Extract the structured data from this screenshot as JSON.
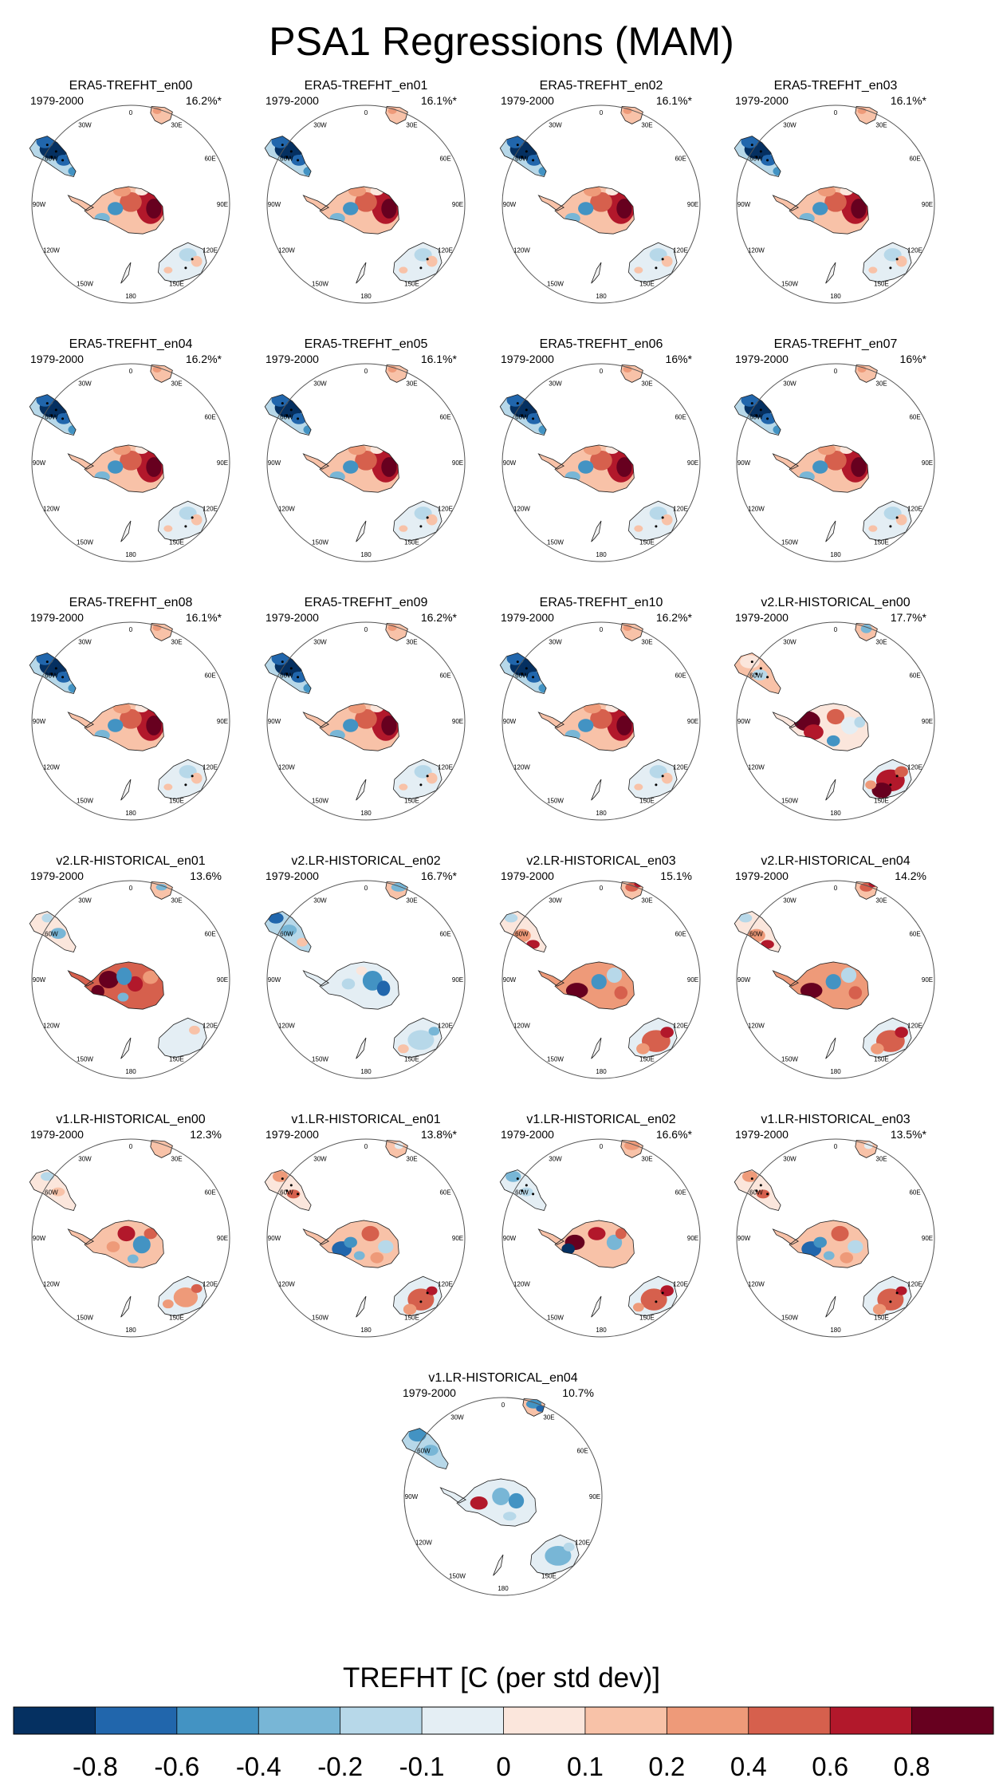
{
  "title": "PSA1 Regressions (MAM)",
  "colorbar": {
    "title": "TREFHT [C (per std dev)]",
    "colors": [
      "#053061",
      "#2166ac",
      "#4393c3",
      "#78b6d6",
      "#b7d8e9",
      "#e4eef4",
      "#fbe6dc",
      "#f8c2a8",
      "#ee9a79",
      "#d6604d",
      "#b2182b",
      "#67001f"
    ],
    "ticks": [
      "-0.8",
      "-0.6",
      "-0.4",
      "-0.2",
      "-0.1",
      "0",
      "0.1",
      "0.2",
      "0.4",
      "0.6",
      "0.8"
    ]
  },
  "lon_labels": [
    "0",
    "30E",
    "60E",
    "90E",
    "120E",
    "150E",
    "180",
    "150W",
    "120W",
    "90W",
    "60W",
    "30W"
  ],
  "chart_data": {
    "type": "heatmap",
    "variable": "TREFHT",
    "units": "C (per std dev)",
    "season": "MAM",
    "period": "1979-2000",
    "panels": [
      {
        "name": "ERA5-TREFHT_en00",
        "period": "1979-2000",
        "pct": "16.2%*",
        "pattern": "era5"
      },
      {
        "name": "ERA5-TREFHT_en01",
        "period": "1979-2000",
        "pct": "16.1%*",
        "pattern": "era5"
      },
      {
        "name": "ERA5-TREFHT_en02",
        "period": "1979-2000",
        "pct": "16.1%*",
        "pattern": "era5"
      },
      {
        "name": "ERA5-TREFHT_en03",
        "period": "1979-2000",
        "pct": "16.1%*",
        "pattern": "era5"
      },
      {
        "name": "ERA5-TREFHT_en04",
        "period": "1979-2000",
        "pct": "16.2%*",
        "pattern": "era5"
      },
      {
        "name": "ERA5-TREFHT_en05",
        "period": "1979-2000",
        "pct": "16.1%*",
        "pattern": "era5"
      },
      {
        "name": "ERA5-TREFHT_en06",
        "period": "1979-2000",
        "pct": "16%*",
        "pattern": "era5"
      },
      {
        "name": "ERA5-TREFHT_en07",
        "period": "1979-2000",
        "pct": "16%*",
        "pattern": "era5"
      },
      {
        "name": "ERA5-TREFHT_en08",
        "period": "1979-2000",
        "pct": "16.1%*",
        "pattern": "era5"
      },
      {
        "name": "ERA5-TREFHT_en09",
        "period": "1979-2000",
        "pct": "16.2%*",
        "pattern": "era5"
      },
      {
        "name": "ERA5-TREFHT_en10",
        "period": "1979-2000",
        "pct": "16.2%*",
        "pattern": "era5"
      },
      {
        "name": "v2.LR-HISTORICAL_en00",
        "period": "1979-2000",
        "pct": "17.7%*",
        "pattern": "v2a"
      },
      {
        "name": "v2.LR-HISTORICAL_en01",
        "period": "1979-2000",
        "pct": "13.6%",
        "pattern": "v2b"
      },
      {
        "name": "v2.LR-HISTORICAL_en02",
        "period": "1979-2000",
        "pct": "16.7%*",
        "pattern": "v2c"
      },
      {
        "name": "v2.LR-HISTORICAL_en03",
        "period": "1979-2000",
        "pct": "15.1%",
        "pattern": "v2d"
      },
      {
        "name": "v2.LR-HISTORICAL_en04",
        "period": "1979-2000",
        "pct": "14.2%",
        "pattern": "v2d"
      },
      {
        "name": "v1.LR-HISTORICAL_en00",
        "period": "1979-2000",
        "pct": "12.3%",
        "pattern": "v1a"
      },
      {
        "name": "v1.LR-HISTORICAL_en01",
        "period": "1979-2000",
        "pct": "13.8%*",
        "pattern": "v1b"
      },
      {
        "name": "v1.LR-HISTORICAL_en02",
        "period": "1979-2000",
        "pct": "16.6%*",
        "pattern": "v1c"
      },
      {
        "name": "v1.LR-HISTORICAL_en03",
        "period": "1979-2000",
        "pct": "13.5%*",
        "pattern": "v1b"
      },
      {
        "name": "v1.LR-HISTORICAL_en04",
        "period": "1979-2000",
        "pct": "10.7%",
        "pattern": "v1d"
      }
    ]
  }
}
